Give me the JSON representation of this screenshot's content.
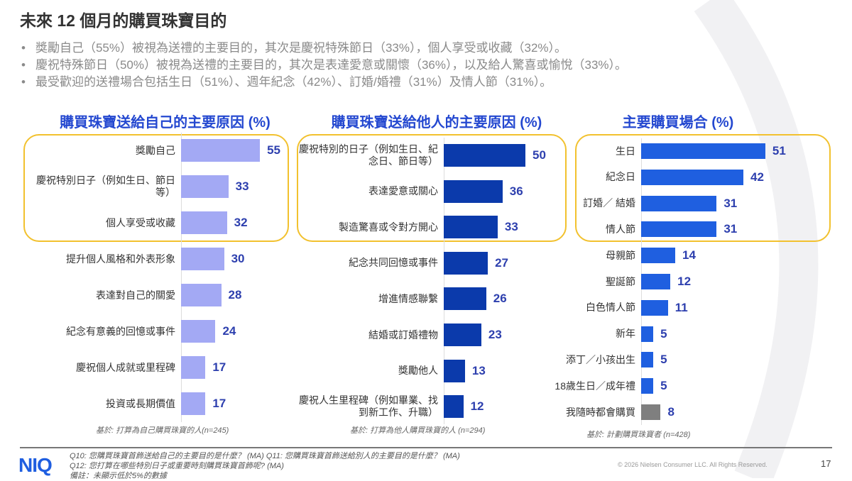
{
  "title": "未來 12 個月的購買珠寶目的",
  "bullets": [
    "獎勵自己（55%）被視為送禮的主要目的，其次是慶祝特殊節日（33%），個人享受或收藏（32%）。",
    "慶祝特殊節日（50%）被視為送禮的主要目的，其次是表達愛意或關懷（36%），以及給人驚喜或愉悅（33%）。",
    "最受歡迎的送禮場合包括生日（51%）、週年紀念（42%）、訂婚/婚禮（31%）及情人節（31%）。"
  ],
  "chart_data": [
    {
      "type": "bar",
      "orientation": "horizontal",
      "title": "購買珠寶送給自己的主要原因 (%)",
      "categories": [
        "獎勵自己",
        "慶祝特別日子（例如生日、節日等）",
        "個人享受或收藏",
        "提升個人風格和外表形象",
        "表達對自己的關愛",
        "紀念有意義的回憶或事件",
        "慶祝個人成就或里程碑",
        "投資或長期價值"
      ],
      "values": [
        55,
        33,
        32,
        30,
        28,
        24,
        17,
        17
      ],
      "highlighted_top": 3,
      "color": "#a3a9f4",
      "base_note": "基於: 打算為自己購買珠寶的人(n=245)"
    },
    {
      "type": "bar",
      "orientation": "horizontal",
      "title": "購買珠寶送給他人的主要原因 (%)",
      "categories": [
        "慶祝特別的日子（例如生日、紀念日、節日等）",
        "表達愛意或關心",
        "製造驚喜或令對方開心",
        "紀念共同回憶或事件",
        "增進情感聯繫",
        "結婚或訂婚禮物",
        "獎勵他人",
        "慶祝人生里程碑（例如畢業、找到新工作、升職）"
      ],
      "values": [
        50,
        36,
        33,
        27,
        26,
        23,
        13,
        12
      ],
      "highlighted_top": 3,
      "color": "#0b3aab",
      "base_note": "基於: 打算為他人購買珠寶的人 (n=294)"
    },
    {
      "type": "bar",
      "orientation": "horizontal",
      "title": "主要購買場合 (%)",
      "categories": [
        "生日",
        "紀念日",
        "訂婚／ 結婚",
        "情人節",
        "母親節",
        "聖誕節",
        "白色情人節",
        "新年",
        "添丁／小孩出生",
        "18歲生日／成年禮",
        "我隨時都會購買"
      ],
      "values": [
        51,
        42,
        31,
        31,
        14,
        12,
        11,
        5,
        5,
        5,
        8
      ],
      "highlighted_top": 4,
      "color": "#1f5fe0",
      "other_color": "#7f7f7f",
      "base_note": "基於: 計劃購買珠寶者 (n=428)"
    }
  ],
  "accent": "#2448d0",
  "highlight_box_color": "#f2c12e",
  "footer": {
    "logo": "NIQ",
    "notes": [
      "Q10: 您購買珠寶首飾送給自己的主要目的是什麼？ (MA) Q11: 您購買珠寶首飾送給別人的主要目的是什麼？ (MA)",
      "Q12: 您打算在哪些特別日子或重要時刻購買珠寶首飾呢? (MA)",
      "備註：未顯示低於5%的數據"
    ],
    "copyright": "© 2026 Nielsen Consumer LLC. All Rights Reserved.",
    "page": "17"
  }
}
